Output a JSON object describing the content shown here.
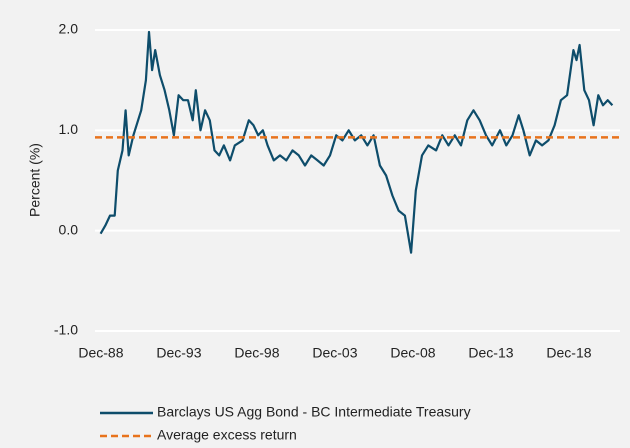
{
  "chart_data": {
    "type": "line",
    "y_label": "Percent (%)",
    "xlim": [
      1988.54,
      2022.19
    ],
    "ylim": [
      -1.0,
      2.0
    ],
    "xticks": [
      {
        "value": 1988.92,
        "label": "Dec-88"
      },
      {
        "value": 1993.92,
        "label": "Dec-93"
      },
      {
        "value": 1998.92,
        "label": "Dec-98"
      },
      {
        "value": 2003.92,
        "label": "Dec-03"
      },
      {
        "value": 2008.92,
        "label": "Dec-08"
      },
      {
        "value": 2013.92,
        "label": "Dec-13"
      },
      {
        "value": 2018.92,
        "label": "Dec-18"
      }
    ],
    "yticks": [
      {
        "value": 2.0,
        "label": "2.0"
      },
      {
        "value": 1.0,
        "label": "1.0"
      },
      {
        "value": 0.0,
        "label": "0.0"
      },
      {
        "value": -1.0,
        "label": "-1.0"
      }
    ],
    "grid": true,
    "x": [
      1988.9,
      1989.2,
      1989.5,
      1989.8,
      1990.0,
      1990.3,
      1990.5,
      1990.7,
      1991.0,
      1991.5,
      1991.8,
      1992.0,
      1992.2,
      1992.4,
      1992.7,
      1993.0,
      1993.3,
      1993.6,
      1993.9,
      1994.2,
      1994.5,
      1994.8,
      1995.0,
      1995.3,
      1995.6,
      1995.9,
      1996.2,
      1996.5,
      1996.8,
      1997.2,
      1997.5,
      1998.0,
      1998.4,
      1998.7,
      1999.0,
      1999.3,
      1999.6,
      2000.0,
      2000.4,
      2000.8,
      2001.2,
      2001.6,
      2002.0,
      2002.4,
      2002.8,
      2003.2,
      2003.6,
      2004.0,
      2004.4,
      2004.8,
      2005.2,
      2005.6,
      2006.0,
      2006.4,
      2006.8,
      2007.2,
      2007.6,
      2008.0,
      2008.4,
      2008.8,
      2009.1,
      2009.5,
      2009.9,
      2010.4,
      2010.8,
      2011.2,
      2011.6,
      2012.0,
      2012.4,
      2012.8,
      2013.2,
      2013.6,
      2014.0,
      2014.5,
      2014.9,
      2015.3,
      2015.7,
      2016.0,
      2016.4,
      2016.8,
      2017.2,
      2017.6,
      2018.0,
      2018.4,
      2018.8,
      2019.2,
      2019.4,
      2019.6,
      2019.9,
      2020.2,
      2020.5,
      2020.8,
      2021.1,
      2021.4,
      2021.7
    ],
    "series": [
      {
        "name": "Barclays US Agg Bond - BC Intermediate Treasury",
        "color": "#0e4d6b",
        "values": [
          -0.03,
          0.05,
          0.15,
          0.15,
          0.6,
          0.8,
          1.2,
          0.75,
          0.95,
          1.2,
          1.5,
          1.98,
          1.6,
          1.8,
          1.55,
          1.4,
          1.2,
          0.95,
          1.35,
          1.3,
          1.3,
          1.1,
          1.4,
          1.0,
          1.2,
          1.1,
          0.8,
          0.75,
          0.85,
          0.7,
          0.85,
          0.9,
          1.1,
          1.05,
          0.95,
          1.0,
          0.85,
          0.7,
          0.75,
          0.7,
          0.8,
          0.75,
          0.65,
          0.75,
          0.7,
          0.65,
          0.75,
          0.95,
          0.9,
          1.0,
          0.9,
          0.95,
          0.85,
          0.95,
          0.65,
          0.55,
          0.35,
          0.2,
          0.15,
          -0.22,
          0.4,
          0.75,
          0.85,
          0.8,
          0.95,
          0.85,
          0.95,
          0.85,
          1.1,
          1.2,
          1.1,
          0.95,
          0.85,
          1.0,
          0.85,
          0.95,
          1.15,
          1.0,
          0.75,
          0.9,
          0.85,
          0.9,
          1.05,
          1.3,
          1.35,
          1.8,
          1.7,
          1.85,
          1.4,
          1.3,
          1.05,
          1.35,
          1.25,
          1.3,
          1.25
        ]
      },
      {
        "name": "Average excess return",
        "color": "#e8731c",
        "dashed": true,
        "constant": 0.93
      }
    ]
  }
}
